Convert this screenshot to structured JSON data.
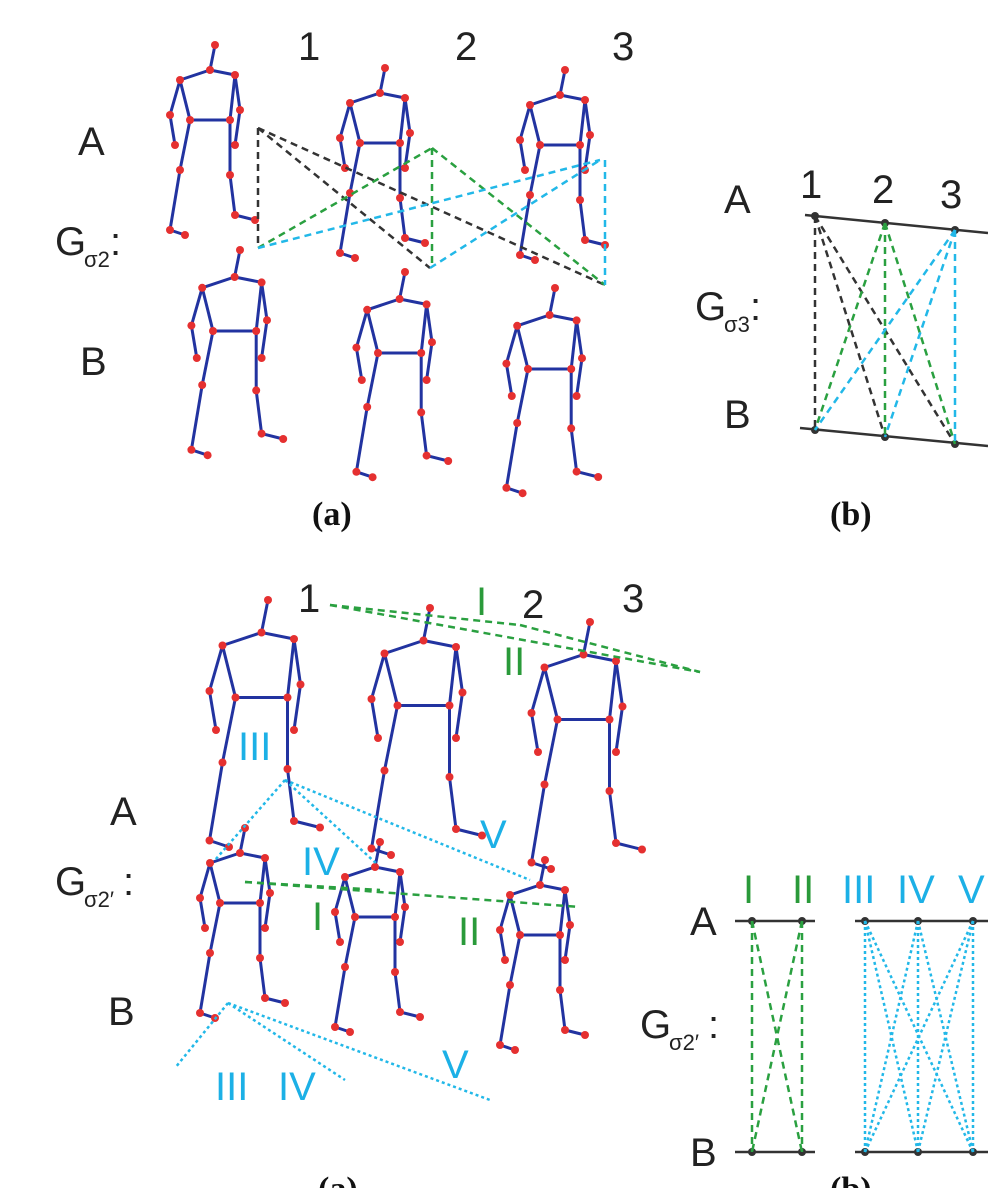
{
  "top_left": {
    "columns": [
      "1",
      "2",
      "3"
    ],
    "row_a": "A",
    "graph": {
      "main": "G",
      "sub": "σ2",
      "colon": ":"
    },
    "row_b": "B",
    "caption": "(a)"
  },
  "top_right": {
    "columns": [
      "1",
      "2",
      "3"
    ],
    "row_a": "A",
    "graph": {
      "main": "G",
      "sub": "σ3",
      "colon": ":"
    },
    "row_b": "B",
    "caption": "(b)"
  },
  "bottom_left": {
    "columns": [
      "1",
      "2",
      "3"
    ],
    "a_labels": [
      "I",
      "II",
      "III",
      "IV",
      "V"
    ],
    "row_a": "A",
    "graph": {
      "main": "G",
      "sub": "σ2′",
      "colon": ":"
    },
    "row_b": "B",
    "b_labels": [
      "I",
      "II",
      "III",
      "IV",
      "V"
    ],
    "caption": "(a)"
  },
  "bottom_right": {
    "labels": [
      "I",
      "II",
      "III",
      "IV",
      "V"
    ],
    "row_a": "A",
    "graph": {
      "main": "G",
      "sub": "σ2′",
      "colon": ":"
    },
    "row_b": "B",
    "caption": "(b)"
  }
}
